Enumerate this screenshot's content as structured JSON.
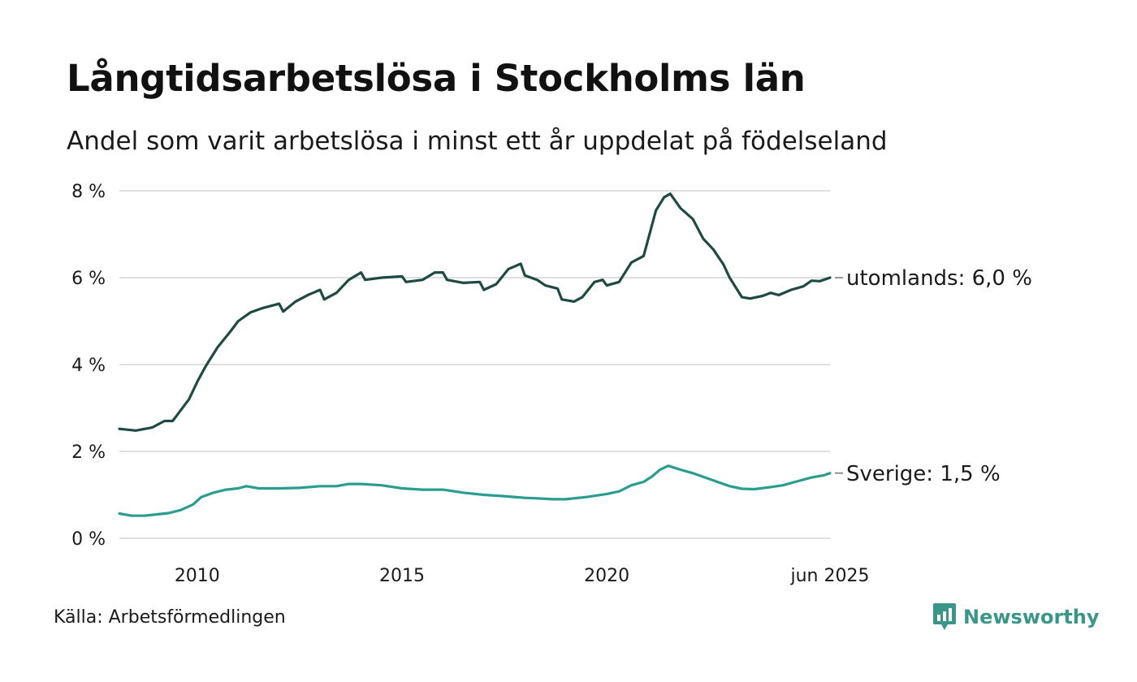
{
  "title": "Långtidsarbetslösa i Stockholms län",
  "subtitle": "Andel som varit arbetslösa i minst ett år uppdelat på födelseland",
  "source": "Källa: Arbetsförmedlingen",
  "brand": {
    "name": "Newsworthy",
    "icon": "newsworthy-logo-icon",
    "color": "#3a9688"
  },
  "chart_data": {
    "type": "line",
    "title": "Långtidsarbetslösa i Stockholms län",
    "subtitle": "Andel som varit arbetslösa i minst ett år uppdelat på födelseland",
    "xlabel": "",
    "ylabel": "",
    "ylim": [
      0,
      8
    ],
    "y_ticks": [
      0,
      2,
      4,
      6,
      8
    ],
    "y_tick_labels": [
      "0 %",
      "2 %",
      "4 %",
      "6 %",
      "8 %"
    ],
    "x_range": [
      2008.1,
      2025.45
    ],
    "x_ticks": [
      2010,
      2015,
      2020,
      2025.45
    ],
    "x_tick_labels": [
      "2010",
      "2015",
      "2020",
      "jun 2025"
    ],
    "grid": true,
    "legend": "end-of-line labels",
    "series": [
      {
        "name": "utomlands",
        "end_label": "utomlands: 6,0 %",
        "color": "#1f4a44",
        "points": [
          [
            2008.1,
            2.52
          ],
          [
            2008.5,
            2.48
          ],
          [
            2008.9,
            2.55
          ],
          [
            2009.2,
            2.7
          ],
          [
            2009.4,
            2.7
          ],
          [
            2009.6,
            2.95
          ],
          [
            2009.8,
            3.2
          ],
          [
            2010.0,
            3.6
          ],
          [
            2010.2,
            3.95
          ],
          [
            2010.5,
            4.4
          ],
          [
            2010.8,
            4.75
          ],
          [
            2011.0,
            5.0
          ],
          [
            2011.3,
            5.2
          ],
          [
            2011.6,
            5.3
          ],
          [
            2012.0,
            5.4
          ],
          [
            2012.1,
            5.22
          ],
          [
            2012.4,
            5.45
          ],
          [
            2012.7,
            5.6
          ],
          [
            2013.0,
            5.72
          ],
          [
            2013.1,
            5.5
          ],
          [
            2013.4,
            5.65
          ],
          [
            2013.7,
            5.95
          ],
          [
            2014.0,
            6.12
          ],
          [
            2014.1,
            5.95
          ],
          [
            2014.5,
            6.0
          ],
          [
            2015.0,
            6.03
          ],
          [
            2015.1,
            5.9
          ],
          [
            2015.5,
            5.95
          ],
          [
            2015.8,
            6.12
          ],
          [
            2016.0,
            6.12
          ],
          [
            2016.1,
            5.95
          ],
          [
            2016.5,
            5.88
          ],
          [
            2016.9,
            5.9
          ],
          [
            2017.0,
            5.72
          ],
          [
            2017.3,
            5.85
          ],
          [
            2017.6,
            6.2
          ],
          [
            2017.9,
            6.32
          ],
          [
            2018.0,
            6.05
          ],
          [
            2018.3,
            5.95
          ],
          [
            2018.5,
            5.82
          ],
          [
            2018.8,
            5.75
          ],
          [
            2018.9,
            5.5
          ],
          [
            2019.2,
            5.45
          ],
          [
            2019.4,
            5.55
          ],
          [
            2019.7,
            5.9
          ],
          [
            2019.9,
            5.95
          ],
          [
            2020.0,
            5.82
          ],
          [
            2020.3,
            5.9
          ],
          [
            2020.6,
            6.35
          ],
          [
            2020.9,
            6.5
          ],
          [
            2021.0,
            6.85
          ],
          [
            2021.2,
            7.55
          ],
          [
            2021.4,
            7.85
          ],
          [
            2021.55,
            7.93
          ],
          [
            2021.8,
            7.6
          ],
          [
            2022.1,
            7.35
          ],
          [
            2022.35,
            6.9
          ],
          [
            2022.6,
            6.65
          ],
          [
            2022.85,
            6.3
          ],
          [
            2023.0,
            6.0
          ],
          [
            2023.3,
            5.55
          ],
          [
            2023.5,
            5.52
          ],
          [
            2023.8,
            5.58
          ],
          [
            2024.0,
            5.65
          ],
          [
            2024.2,
            5.6
          ],
          [
            2024.5,
            5.72
          ],
          [
            2024.8,
            5.8
          ],
          [
            2025.0,
            5.93
          ],
          [
            2025.2,
            5.92
          ],
          [
            2025.45,
            6.0
          ]
        ]
      },
      {
        "name": "Sverige",
        "end_label": "Sverige: 1,5 %",
        "color": "#2a9d8f",
        "points": [
          [
            2008.1,
            0.57
          ],
          [
            2008.4,
            0.52
          ],
          [
            2008.7,
            0.52
          ],
          [
            2009.0,
            0.55
          ],
          [
            2009.3,
            0.58
          ],
          [
            2009.6,
            0.65
          ],
          [
            2009.9,
            0.78
          ],
          [
            2010.1,
            0.95
          ],
          [
            2010.4,
            1.05
          ],
          [
            2010.7,
            1.12
          ],
          [
            2011.0,
            1.15
          ],
          [
            2011.2,
            1.2
          ],
          [
            2011.5,
            1.15
          ],
          [
            2011.8,
            1.15
          ],
          [
            2012.0,
            1.15
          ],
          [
            2012.5,
            1.16
          ],
          [
            2013.0,
            1.2
          ],
          [
            2013.4,
            1.2
          ],
          [
            2013.7,
            1.25
          ],
          [
            2014.0,
            1.25
          ],
          [
            2014.5,
            1.22
          ],
          [
            2015.0,
            1.15
          ],
          [
            2015.5,
            1.12
          ],
          [
            2016.0,
            1.12
          ],
          [
            2016.5,
            1.05
          ],
          [
            2017.0,
            1.0
          ],
          [
            2017.5,
            0.97
          ],
          [
            2018.0,
            0.93
          ],
          [
            2018.3,
            0.92
          ],
          [
            2018.7,
            0.9
          ],
          [
            2019.0,
            0.9
          ],
          [
            2019.5,
            0.95
          ],
          [
            2020.0,
            1.02
          ],
          [
            2020.3,
            1.08
          ],
          [
            2020.6,
            1.22
          ],
          [
            2020.9,
            1.3
          ],
          [
            2021.1,
            1.42
          ],
          [
            2021.3,
            1.58
          ],
          [
            2021.5,
            1.67
          ],
          [
            2021.8,
            1.58
          ],
          [
            2022.1,
            1.5
          ],
          [
            2022.4,
            1.4
          ],
          [
            2022.7,
            1.3
          ],
          [
            2023.0,
            1.2
          ],
          [
            2023.3,
            1.14
          ],
          [
            2023.6,
            1.13
          ],
          [
            2024.0,
            1.18
          ],
          [
            2024.3,
            1.22
          ],
          [
            2024.6,
            1.3
          ],
          [
            2025.0,
            1.4
          ],
          [
            2025.3,
            1.45
          ],
          [
            2025.45,
            1.5
          ]
        ]
      }
    ]
  }
}
